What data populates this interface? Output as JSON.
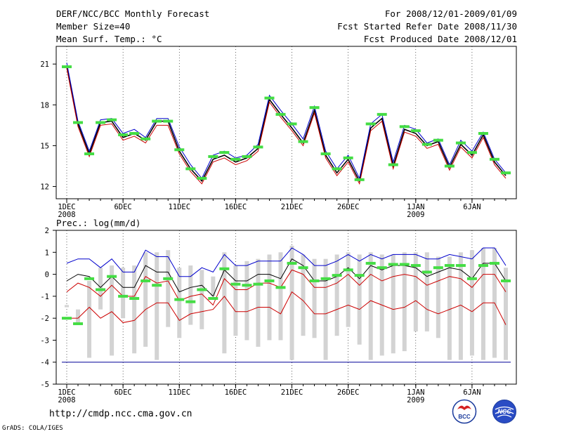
{
  "header": {
    "title": "DERF/NCC/BCC Monthly Forecast",
    "member_size": "Member Size=40",
    "variable": "Mean Surf. Temp.: °C",
    "period": "For 2008/12/01-2009/01/09",
    "started": "Fcst Started Refer Date 2008/11/30",
    "produced": "Fcst Produced Date 2008/12/01"
  },
  "footer": {
    "url": "http://cmdp.ncc.cma.gov.cn",
    "grads": "GrADS: COLA/IGES",
    "logo_bcc": "BCC",
    "logo_ncc": "NCC"
  },
  "colors": {
    "mean": "#000000",
    "upper": "#0000cc",
    "inner": "#cc0000",
    "obs": "#44dd44",
    "box": "#d3d3d3",
    "baseline": "#000099"
  },
  "chart_data": [
    {
      "type": "line",
      "title": "Mean Surf. Temp.: °C",
      "x": [
        1,
        2,
        3,
        4,
        5,
        6,
        7,
        8,
        9,
        10,
        11,
        12,
        13,
        14,
        15,
        16,
        17,
        18,
        19,
        20,
        21,
        22,
        23,
        24,
        25,
        26,
        27,
        28,
        29,
        30,
        31,
        32,
        33,
        34,
        35,
        36,
        37,
        38,
        39,
        40
      ],
      "x_tick_labels": [
        {
          "x": 1,
          "label": "1DEC",
          "sub": "2008"
        },
        {
          "x": 6,
          "label": "6DEC",
          "sub": ""
        },
        {
          "x": 11,
          "label": "11DEC",
          "sub": ""
        },
        {
          "x": 16,
          "label": "16DEC",
          "sub": ""
        },
        {
          "x": 21,
          "label": "21DEC",
          "sub": ""
        },
        {
          "x": 26,
          "label": "26DEC",
          "sub": ""
        },
        {
          "x": 32,
          "label": "1JAN",
          "sub": "2009"
        },
        {
          "x": 37,
          "label": "6JAN",
          "sub": ""
        }
      ],
      "y_ticks": [
        12,
        15,
        18,
        21
      ],
      "ylim": [
        11.1,
        22.3
      ],
      "series": [
        {
          "name": "mean",
          "color": "#000000",
          "values": [
            20.9,
            16.6,
            14.4,
            16.7,
            16.8,
            15.6,
            15.9,
            15.4,
            16.8,
            16.8,
            14.6,
            13.3,
            12.4,
            14.0,
            14.3,
            13.8,
            14.1,
            14.8,
            18.4,
            17.3,
            16.3,
            15.2,
            17.6,
            14.3,
            13.0,
            14.0,
            12.4,
            16.3,
            17.0,
            13.5,
            16.2,
            15.9,
            15.0,
            15.3,
            13.4,
            15.1,
            14.3,
            15.8,
            13.8,
            12.8
          ]
        },
        {
          "name": "upper",
          "color": "#0000cc",
          "values": [
            21.1,
            16.8,
            14.6,
            16.9,
            17.0,
            15.9,
            16.2,
            15.6,
            17.0,
            17.0,
            14.9,
            13.6,
            12.6,
            14.3,
            14.6,
            14.1,
            14.3,
            15.1,
            18.7,
            17.6,
            16.6,
            15.5,
            17.9,
            14.6,
            13.3,
            14.3,
            12.6,
            16.6,
            17.3,
            13.8,
            16.5,
            16.2,
            15.2,
            15.5,
            13.6,
            15.4,
            14.6,
            16.0,
            14.0,
            13.0
          ]
        },
        {
          "name": "lower",
          "color": "#cc0000",
          "values": [
            20.7,
            16.4,
            14.2,
            16.5,
            16.6,
            15.4,
            15.7,
            15.2,
            16.5,
            16.5,
            14.4,
            13.1,
            12.2,
            13.8,
            14.1,
            13.6,
            13.9,
            14.6,
            18.2,
            17.1,
            16.1,
            15.0,
            17.4,
            14.1,
            12.8,
            13.8,
            12.2,
            16.1,
            16.8,
            13.3,
            16.0,
            15.7,
            14.8,
            15.1,
            13.2,
            14.9,
            14.1,
            15.6,
            13.6,
            12.6
          ]
        }
      ],
      "observed": [
        20.8,
        16.7,
        14.4,
        16.7,
        16.9,
        15.8,
        15.9,
        15.5,
        16.8,
        16.8,
        14.7,
        13.3,
        12.6,
        14.2,
        14.5,
        14.0,
        14.2,
        14.9,
        18.5,
        17.3,
        16.6,
        15.3,
        17.8,
        14.4,
        13.3,
        14.1,
        12.5,
        16.6,
        17.3,
        13.6,
        16.4,
        16.1,
        15.1,
        15.4,
        13.5,
        15.2,
        14.5,
        15.9,
        14.0,
        13.0
      ]
    },
    {
      "type": "line",
      "title": "Prec.: log(mm/d)",
      "x": [
        1,
        2,
        3,
        4,
        5,
        6,
        7,
        8,
        9,
        10,
        11,
        12,
        13,
        14,
        15,
        16,
        17,
        18,
        19,
        20,
        21,
        22,
        23,
        24,
        25,
        26,
        27,
        28,
        29,
        30,
        31,
        32,
        33,
        34,
        35,
        36,
        37,
        38,
        39,
        40
      ],
      "y_ticks": [
        -5,
        -4,
        -3,
        -2,
        -1,
        0,
        1,
        2
      ],
      "ylim": [
        -5,
        2
      ],
      "baseline": -4,
      "box_bottom": [
        -1.5,
        -2.2,
        -3.8,
        -1.6,
        -3.7,
        -2.0,
        -3.6,
        -3.3,
        -3.9,
        -2.4,
        -2.9,
        -2.3,
        -2.5,
        -1.0,
        -3.6,
        -2.8,
        -3.0,
        -3.3,
        -3.0,
        -3.0,
        -3.9,
        -2.8,
        -2.9,
        -3.9,
        -2.8,
        -2.4,
        -3.2,
        -3.9,
        -3.7,
        -3.6,
        -3.5,
        -2.6,
        -2.6,
        -2.9,
        -3.9,
        -3.9,
        -3.7,
        -3.9,
        -3.8,
        -3.9
      ],
      "box_top": [
        -1.4,
        -1.6,
        -0.3,
        0.3,
        0.4,
        0.3,
        0.4,
        1.0,
        1.0,
        1.1,
        0.3,
        0.4,
        0.2,
        -0.1,
        1.0,
        0.4,
        0.6,
        0.7,
        0.9,
        1.0,
        1.3,
        0.9,
        0.7,
        0.7,
        0.9,
        1.0,
        0.9,
        1.0,
        0.9,
        0.9,
        1.0,
        1.0,
        1.0,
        0.8,
        0.8,
        1.0,
        1.1,
        1.2,
        1.2,
        0.3
      ],
      "series": [
        {
          "name": "upper",
          "color": "#0000cc",
          "values": [
            0.5,
            0.7,
            0.7,
            0.3,
            0.7,
            0.1,
            0.1,
            1.1,
            0.8,
            0.8,
            -0.1,
            -0.1,
            0.3,
            0.1,
            0.9,
            0.4,
            0.4,
            0.6,
            0.6,
            0.6,
            1.2,
            0.9,
            0.4,
            0.4,
            0.6,
            0.9,
            0.6,
            0.9,
            0.7,
            0.9,
            0.9,
            0.9,
            0.7,
            0.7,
            0.9,
            0.8,
            0.7,
            1.2,
            1.2,
            0.4
          ]
        },
        {
          "name": "mean",
          "color": "#000000",
          "values": [
            -0.3,
            0.0,
            -0.1,
            -0.6,
            -0.1,
            -0.6,
            -0.6,
            0.4,
            0.1,
            0.1,
            -0.8,
            -0.6,
            -0.5,
            -1.0,
            0.2,
            -0.3,
            -0.3,
            0.0,
            0.0,
            -0.2,
            0.7,
            0.4,
            -0.3,
            -0.3,
            -0.1,
            0.3,
            -0.2,
            0.4,
            0.2,
            0.4,
            0.4,
            0.3,
            -0.1,
            0.1,
            0.3,
            0.2,
            -0.2,
            0.5,
            0.5,
            -0.3
          ]
        },
        {
          "name": "inner",
          "color": "#cc0000",
          "values": [
            -0.8,
            -0.4,
            -0.6,
            -1.0,
            -0.5,
            -1.0,
            -1.0,
            -0.1,
            -0.4,
            -0.3,
            -1.2,
            -1.0,
            -0.9,
            -1.4,
            -0.2,
            -0.7,
            -0.7,
            -0.4,
            -0.4,
            -0.6,
            0.2,
            0.0,
            -0.6,
            -0.6,
            -0.4,
            0.0,
            -0.5,
            0.0,
            -0.3,
            -0.1,
            0.0,
            -0.1,
            -0.5,
            -0.3,
            -0.1,
            -0.2,
            -0.6,
            0.0,
            0.0,
            -0.8
          ]
        },
        {
          "name": "lower",
          "color": "#cc0000",
          "values": [
            -2.0,
            -2.0,
            -1.5,
            -2.0,
            -1.7,
            -2.2,
            -2.1,
            -1.6,
            -1.3,
            -1.3,
            -2.1,
            -1.8,
            -1.7,
            -1.6,
            -1.0,
            -1.7,
            -1.7,
            -1.5,
            -1.5,
            -1.8,
            -0.8,
            -1.2,
            -1.8,
            -1.8,
            -1.6,
            -1.4,
            -1.6,
            -1.2,
            -1.4,
            -1.6,
            -1.5,
            -1.2,
            -1.6,
            -1.8,
            -1.6,
            -1.4,
            -1.7,
            -1.3,
            -1.3,
            -2.3
          ]
        }
      ],
      "observed": [
        -2.0,
        -2.25,
        -0.2,
        -0.7,
        -0.1,
        -1.0,
        -1.1,
        -0.3,
        -0.5,
        -0.2,
        -1.15,
        -1.25,
        -0.7,
        -1.1,
        0.25,
        -0.45,
        -0.5,
        -0.45,
        -0.3,
        -0.6,
        0.5,
        0.3,
        -0.3,
        -0.2,
        -0.05,
        0.2,
        -0.05,
        0.5,
        0.3,
        0.45,
        0.45,
        0.4,
        0.1,
        0.3,
        0.4,
        0.4,
        -0.2,
        0.4,
        0.5,
        -0.3
      ]
    }
  ]
}
